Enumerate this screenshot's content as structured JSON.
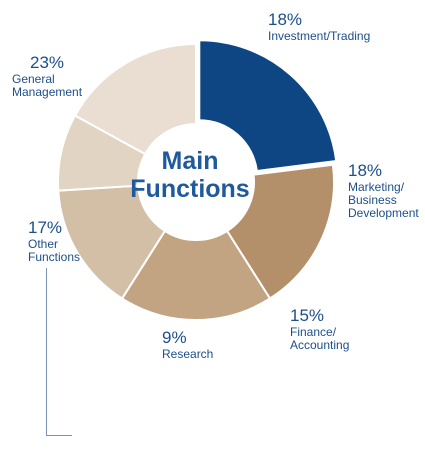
{
  "chart_data": {
    "type": "pie",
    "variant": "donut",
    "center_label": [
      "Main",
      "Functions"
    ],
    "segments": [
      {
        "percent_label": "23%",
        "name_lines": [
          "General",
          "Management"
        ],
        "value": 23,
        "color": "#0d4682"
      },
      {
        "percent_label": "18%",
        "name_lines": [
          "Investment/Trading"
        ],
        "value": 18,
        "color": "#b3906a"
      },
      {
        "percent_label": "18%",
        "name_lines": [
          "Marketing/",
          "Business",
          "Development"
        ],
        "value": 18,
        "color": "#c2a482"
      },
      {
        "percent_label": "15%",
        "name_lines": [
          "Finance/",
          "Accounting"
        ],
        "value": 15,
        "color": "#d3bfa5"
      },
      {
        "percent_label": "9%",
        "name_lines": [
          "Research"
        ],
        "value": 9,
        "color": "#e2d4c3"
      },
      {
        "percent_label": "17%",
        "name_lines": [
          "Other",
          "Functions"
        ],
        "value": 17,
        "color": "#e9ded1"
      }
    ]
  }
}
